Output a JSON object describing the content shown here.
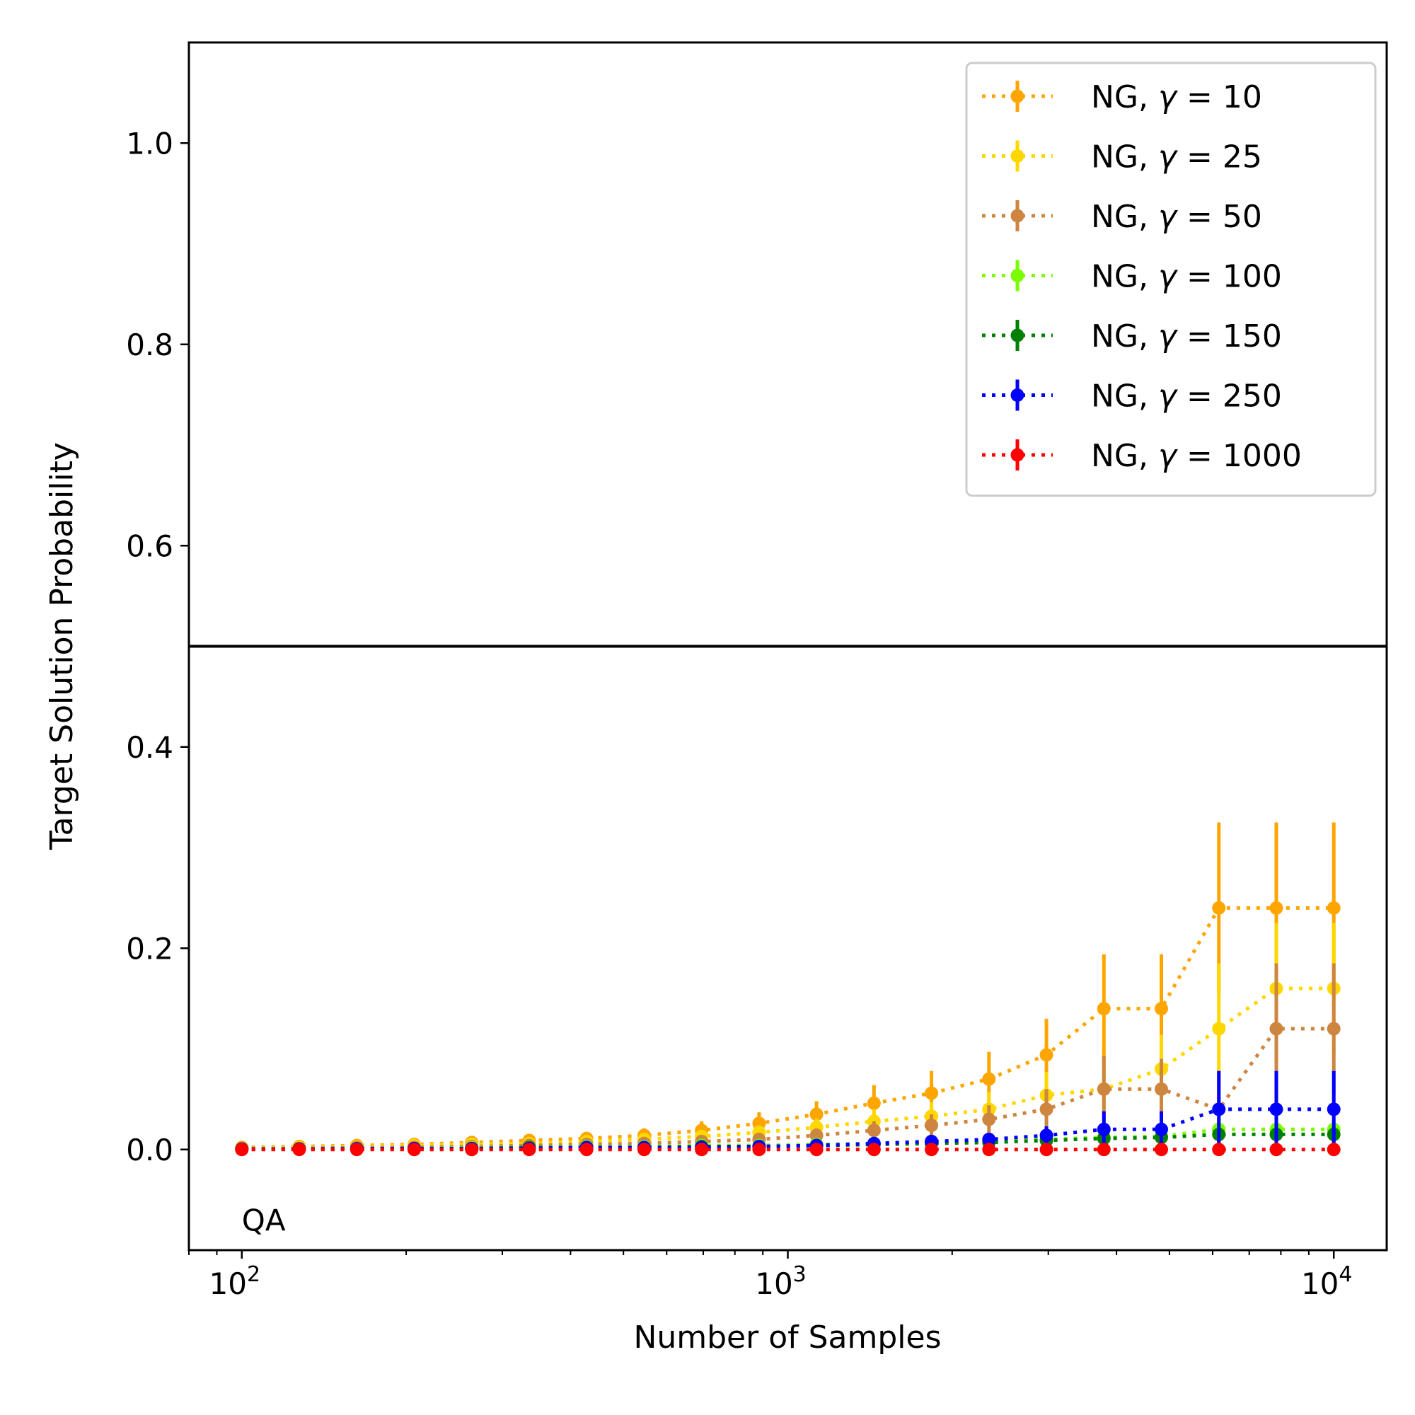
{
  "chart_data": {
    "type": "line",
    "xscale": "log",
    "title": "",
    "xlabel": "Number of Samples",
    "ylabel": "Target Solution Probability",
    "xlim": [
      80,
      12500
    ],
    "ylim": [
      -0.1,
      1.1
    ],
    "yticks": [
      {
        "value": 0.0,
        "label": "0.0"
      },
      {
        "value": 0.2,
        "label": "0.2"
      },
      {
        "value": 0.4,
        "label": "0.4"
      },
      {
        "value": 0.6,
        "label": "0.6"
      },
      {
        "value": 0.8,
        "label": "0.8"
      },
      {
        "value": 1.0,
        "label": "1.0"
      }
    ],
    "xticks": [
      {
        "value": 100,
        "base": "10",
        "exp": "2"
      },
      {
        "value": 1000,
        "base": "10",
        "exp": "3"
      },
      {
        "value": 10000,
        "base": "10",
        "exp": "4"
      }
    ],
    "hline": 0.5,
    "annotation": {
      "text": "QA",
      "x": 100,
      "y": -0.07
    },
    "legend": {
      "location": "upper-right",
      "prefix": "NG, ",
      "gamma_symbol": "γ",
      "equals": " = "
    },
    "x": [
      100,
      127.4,
      162.4,
      206.9,
      263.7,
      336.0,
      428.1,
      545.6,
      695.2,
      885.9,
      1128.8,
      1438.4,
      1832.9,
      2335.7,
      2976.4,
      3792.7,
      4832.9,
      6158.5,
      7847.6,
      10000
    ],
    "series": [
      {
        "gamma": "10",
        "color": "#ffa500",
        "values": [
          0.002,
          0.003,
          0.004,
          0.005,
          0.007,
          0.009,
          0.011,
          0.014,
          0.019,
          0.026,
          0.035,
          0.046,
          0.056,
          0.07,
          0.094,
          0.14,
          0.14,
          0.24,
          0.24,
          0.24
        ],
        "errors": [
          0.001,
          0.002,
          0.002,
          0.003,
          0.004,
          0.005,
          0.006,
          0.007,
          0.009,
          0.011,
          0.013,
          0.018,
          0.022,
          0.027,
          0.036,
          0.054,
          0.054,
          0.085,
          0.085,
          0.085
        ]
      },
      {
        "gamma": "25",
        "color": "#ffd700",
        "values": [
          0.001,
          0.002,
          0.003,
          0.004,
          0.005,
          0.006,
          0.008,
          0.01,
          0.013,
          0.017,
          0.022,
          0.028,
          0.033,
          0.04,
          0.054,
          0.06,
          0.08,
          0.12,
          0.16,
          0.16
        ],
        "errors": [
          0.001,
          0.001,
          0.002,
          0.002,
          0.003,
          0.003,
          0.004,
          0.005,
          0.006,
          0.007,
          0.009,
          0.012,
          0.014,
          0.017,
          0.023,
          0.027,
          0.034,
          0.065,
          0.065,
          0.065
        ]
      },
      {
        "gamma": "50",
        "color": "#cd853f",
        "values": [
          0.001,
          0.001,
          0.002,
          0.002,
          0.003,
          0.004,
          0.005,
          0.006,
          0.008,
          0.01,
          0.014,
          0.019,
          0.024,
          0.03,
          0.04,
          0.06,
          0.06,
          0.04,
          0.12,
          0.12
        ],
        "errors": [
          0.0005,
          0.001,
          0.001,
          0.001,
          0.002,
          0.002,
          0.003,
          0.003,
          0.004,
          0.005,
          0.007,
          0.009,
          0.011,
          0.014,
          0.02,
          0.033,
          0.03,
          0.038,
          0.065,
          0.065
        ]
      },
      {
        "gamma": "100",
        "color": "#7cfc00",
        "values": [
          0.0005,
          0.0008,
          0.001,
          0.001,
          0.002,
          0.002,
          0.003,
          0.003,
          0.004,
          0.004,
          0.005,
          0.006,
          0.007,
          0.008,
          0.01,
          0.012,
          0.013,
          0.02,
          0.02,
          0.02
        ],
        "errors": [
          0.0005,
          0.0005,
          0.001,
          0.001,
          0.001,
          0.001,
          0.001,
          0.002,
          0.002,
          0.002,
          0.003,
          0.003,
          0.004,
          0.004,
          0.005,
          0.006,
          0.006,
          0.01,
          0.01,
          0.01
        ]
      },
      {
        "gamma": "150",
        "color": "#008000",
        "values": [
          0.0004,
          0.0006,
          0.0008,
          0.001,
          0.001,
          0.002,
          0.002,
          0.002,
          0.003,
          0.003,
          0.004,
          0.005,
          0.006,
          0.007,
          0.009,
          0.011,
          0.012,
          0.015,
          0.015,
          0.015
        ],
        "errors": [
          0.0004,
          0.0004,
          0.0005,
          0.001,
          0.001,
          0.001,
          0.001,
          0.001,
          0.002,
          0.002,
          0.002,
          0.003,
          0.003,
          0.004,
          0.004,
          0.005,
          0.005,
          0.008,
          0.008,
          0.008
        ]
      },
      {
        "gamma": "250",
        "color": "#0000ff",
        "values": [
          0.0003,
          0.0005,
          0.0007,
          0.001,
          0.001,
          0.001,
          0.002,
          0.002,
          0.002,
          0.003,
          0.004,
          0.006,
          0.008,
          0.01,
          0.014,
          0.02,
          0.02,
          0.04,
          0.04,
          0.04
        ],
        "errors": [
          0.0003,
          0.0004,
          0.0005,
          0.0006,
          0.0008,
          0.001,
          0.001,
          0.001,
          0.001,
          0.002,
          0.002,
          0.003,
          0.004,
          0.006,
          0.009,
          0.018,
          0.018,
          0.038,
          0.038,
          0.038
        ]
      },
      {
        "gamma": "1000",
        "color": "#ff0000",
        "values": [
          0,
          0,
          0,
          0,
          0,
          0,
          0,
          0,
          0,
          0,
          0,
          0,
          0,
          0,
          0,
          0,
          0,
          0,
          0,
          0
        ],
        "errors": [
          0,
          0,
          0,
          0,
          0,
          0,
          0,
          0,
          0,
          0,
          0,
          0,
          0,
          0,
          0,
          0,
          0,
          0,
          0,
          0
        ]
      }
    ]
  }
}
